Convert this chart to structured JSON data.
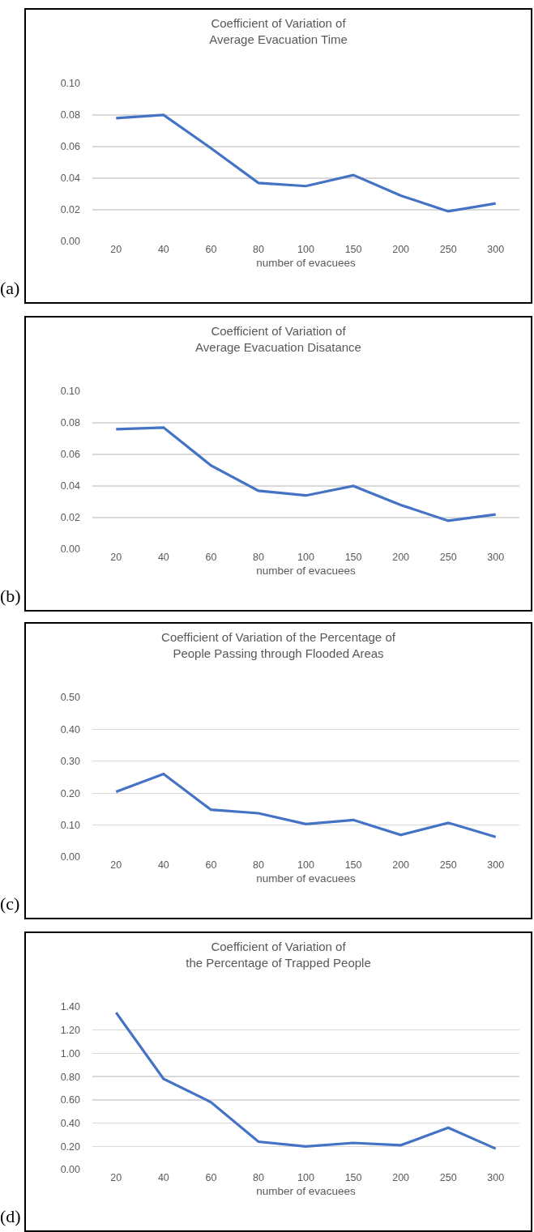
{
  "chart_data": [
    {
      "type": "line",
      "title": "Coefficient of Variation of\nAverage Evacuation Time",
      "xlabel": "number of evacuees",
      "categories": [
        "20",
        "40",
        "60",
        "80",
        "100",
        "150",
        "200",
        "250",
        "300"
      ],
      "series": [
        {
          "color": "#4472c4",
          "values": [
            0.078,
            0.08,
            0.059,
            0.037,
            0.035,
            0.042,
            0.029,
            0.019,
            0.024
          ]
        }
      ],
      "ylim": [
        0,
        0.1
      ],
      "yticks": [
        {
          "value": 0,
          "label": "0.00"
        },
        {
          "value": 0.02,
          "label": "0.02"
        },
        {
          "value": 0.04,
          "label": "0.04"
        },
        {
          "value": 0.06,
          "label": "0.06"
        },
        {
          "value": 0.08,
          "label": "0.08"
        },
        {
          "value": 0.1,
          "label": "0.10"
        }
      ],
      "grid": "y",
      "marker": "none",
      "line_style": "solid",
      "annotations": [
        "(a)"
      ]
    },
    {
      "type": "line",
      "title": "Coefficient of Variation of\nAverage Evacuation Disatance",
      "xlabel": "number of evacuees",
      "categories": [
        "20",
        "40",
        "60",
        "80",
        "100",
        "150",
        "200",
        "250",
        "300"
      ],
      "series": [
        {
          "color": "#4472c4",
          "values": [
            0.076,
            0.077,
            0.053,
            0.037,
            0.034,
            0.04,
            0.028,
            0.018,
            0.022
          ]
        }
      ],
      "ylim": [
        0,
        0.1
      ],
      "yticks": [
        {
          "value": 0,
          "label": "0.00"
        },
        {
          "value": 0.02,
          "label": "0.02"
        },
        {
          "value": 0.04,
          "label": "0.04"
        },
        {
          "value": 0.06,
          "label": "0.06"
        },
        {
          "value": 0.08,
          "label": "0.08"
        },
        {
          "value": 0.1,
          "label": "0.10"
        }
      ],
      "grid": "y",
      "marker": "none",
      "line_style": "solid",
      "annotations": [
        "(b)"
      ]
    },
    {
      "type": "line",
      "title": "Coefficient of Variation of the Percentage of\nPeople Passing through Flooded Areas",
      "xlabel": "number of evacuees",
      "categories": [
        "20",
        "40",
        "60",
        "80",
        "100",
        "150",
        "200",
        "250",
        "300"
      ],
      "series": [
        {
          "color": "#4472c4",
          "values": [
            0.204,
            0.26,
            0.148,
            0.137,
            0.103,
            0.116,
            0.069,
            0.107,
            0.063
          ]
        }
      ],
      "ylim": [
        0,
        0.5
      ],
      "yticks": [
        {
          "value": 0,
          "label": "0.00"
        },
        {
          "value": 0.1,
          "label": "0.10"
        },
        {
          "value": 0.2,
          "label": "0.20"
        },
        {
          "value": 0.3,
          "label": "0.30"
        },
        {
          "value": 0.4,
          "label": "0.40"
        },
        {
          "value": 0.5,
          "label": "0.50"
        }
      ],
      "grid": "y",
      "marker": "none",
      "line_style": "solid",
      "annotations": [
        "(c)"
      ]
    },
    {
      "type": "line",
      "title": "Coefficient of Variation of\nthe Percentage of Trapped People",
      "xlabel": "number of evacuees",
      "categories": [
        "20",
        "40",
        "60",
        "80",
        "100",
        "150",
        "200",
        "250",
        "300"
      ],
      "series": [
        {
          "color": "#4472c4",
          "values": [
            1.35,
            0.78,
            0.58,
            0.24,
            0.2,
            0.23,
            0.21,
            0.36,
            0.18
          ]
        }
      ],
      "ylim": [
        0,
        1.4
      ],
      "yticks": [
        {
          "value": 0,
          "label": "0.00"
        },
        {
          "value": 0.2,
          "label": "0.20"
        },
        {
          "value": 0.4,
          "label": "0.40"
        },
        {
          "value": 0.6,
          "label": "0.60"
        },
        {
          "value": 0.8,
          "label": "0.80"
        },
        {
          "value": 1.0,
          "label": "1.00"
        },
        {
          "value": 1.2,
          "label": "1.20"
        },
        {
          "value": 1.4,
          "label": "1.40"
        }
      ],
      "grid": "y",
      "marker": "none",
      "line_style": "solid",
      "annotations": [
        "(d)"
      ]
    }
  ]
}
